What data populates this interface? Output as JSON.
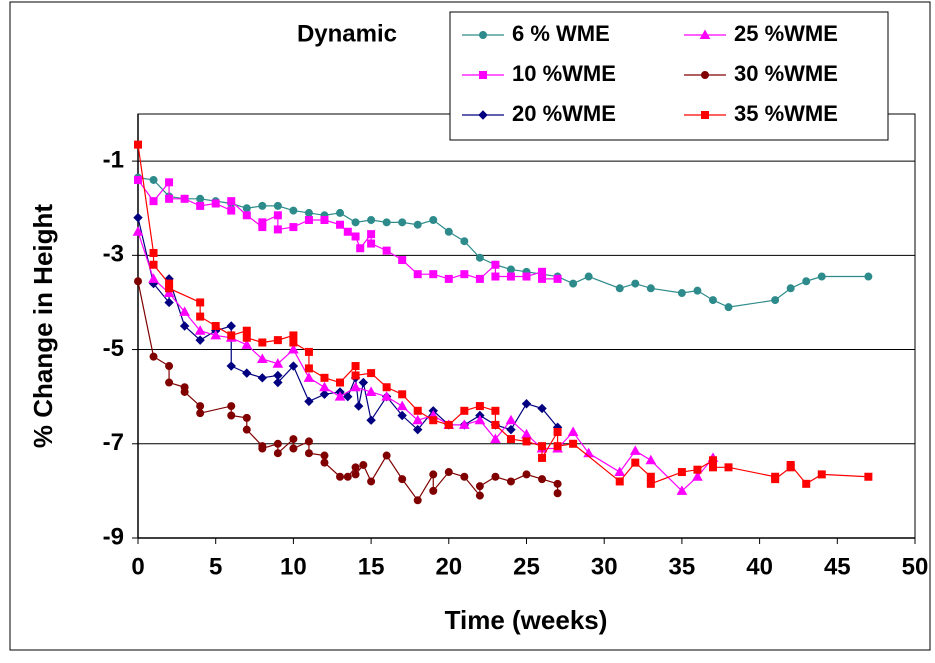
{
  "chart_data": {
    "type": "line",
    "title": "Dynamic",
    "xlabel": "Time (weeks)",
    "ylabel": "% Change in Height",
    "xlim": [
      0,
      50
    ],
    "xticks": [
      0,
      5,
      10,
      15,
      20,
      25,
      30,
      35,
      40,
      45,
      50
    ],
    "ylim": [
      -9,
      0
    ],
    "yticks": [
      -9,
      -7,
      -5,
      -3,
      -1
    ],
    "grid": true,
    "legend": "top-right",
    "series": [
      {
        "name": "6 % WME",
        "color": "#2e8b8b",
        "marker": "circle",
        "x": [
          0,
          1,
          2,
          3,
          4,
          5,
          6,
          7,
          8,
          9,
          10,
          11,
          12,
          13,
          14,
          15,
          16,
          17,
          18,
          19,
          20,
          21,
          22,
          23,
          24,
          25,
          26,
          27,
          28,
          29,
          31,
          32,
          33,
          35,
          36,
          37,
          38,
          41,
          42,
          43,
          44,
          47
        ],
        "values": [
          -1.35,
          -1.4,
          -1.75,
          -1.8,
          -1.8,
          -1.85,
          -1.9,
          -2.0,
          -1.95,
          -1.95,
          -2.05,
          -2.1,
          -2.15,
          -2.1,
          -2.3,
          -2.25,
          -2.3,
          -2.3,
          -2.35,
          -2.25,
          -2.5,
          -2.7,
          -3.05,
          -3.2,
          -3.3,
          -3.35,
          -3.4,
          -3.45,
          -3.6,
          -3.45,
          -3.7,
          -3.6,
          -3.7,
          -3.8,
          -3.75,
          -3.95,
          -4.1,
          -3.95,
          -3.7,
          -3.55,
          -3.45,
          -3.45
        ]
      },
      {
        "name": "10 %WME",
        "color": "#ff00ff",
        "marker": "square",
        "x": [
          0,
          1,
          2,
          2,
          3,
          4,
          5,
          6,
          6,
          7,
          8,
          8,
          9,
          9,
          10,
          11,
          12,
          13,
          13.5,
          14,
          14.3,
          15,
          15,
          16,
          17,
          18,
          19,
          20,
          21,
          22,
          23,
          23,
          24,
          25,
          26,
          26,
          27
        ],
        "values": [
          -1.4,
          -1.85,
          -1.45,
          -1.8,
          -1.8,
          -1.95,
          -1.9,
          -2.05,
          -1.85,
          -2.15,
          -2.4,
          -2.3,
          -2.15,
          -2.45,
          -2.4,
          -2.25,
          -2.25,
          -2.35,
          -2.5,
          -2.6,
          -2.85,
          -2.55,
          -2.75,
          -2.9,
          -3.1,
          -3.4,
          -3.4,
          -3.5,
          -3.4,
          -3.5,
          -3.2,
          -3.45,
          -3.45,
          -3.45,
          -3.35,
          -3.5,
          -3.5
        ]
      },
      {
        "name": "20 %WME",
        "color": "#000080",
        "marker": "diamond",
        "x": [
          0,
          1,
          2,
          2,
          3,
          4,
          5,
          6,
          6,
          7,
          8,
          9,
          9,
          10,
          11,
          12,
          13,
          13.5,
          14,
          14.2,
          14.5,
          15,
          16,
          17,
          18,
          19,
          20,
          21,
          22,
          23,
          24,
          25,
          26,
          27
        ],
        "values": [
          -2.2,
          -3.6,
          -4.0,
          -3.5,
          -4.5,
          -4.8,
          -4.6,
          -4.5,
          -5.35,
          -5.5,
          -5.6,
          -5.55,
          -5.7,
          -5.35,
          -6.1,
          -5.95,
          -5.9,
          -6.0,
          -5.6,
          -6.2,
          -5.7,
          -6.5,
          -6.0,
          -6.4,
          -6.7,
          -6.3,
          -6.6,
          -6.6,
          -6.4,
          -6.6,
          -6.7,
          -6.15,
          -6.25,
          -6.65
        ]
      },
      {
        "name": "25 %WME",
        "color": "#ff00ff",
        "marker": "triangle",
        "x": [
          0,
          1,
          2,
          3,
          4,
          5,
          6,
          7,
          8,
          9,
          10,
          11,
          12,
          13,
          14,
          15,
          16,
          17,
          18,
          19,
          20,
          21,
          22,
          23,
          24,
          25,
          26,
          27,
          28,
          29,
          31,
          32,
          33,
          35,
          36,
          37
        ],
        "values": [
          -2.5,
          -3.5,
          -3.8,
          -4.2,
          -4.6,
          -4.7,
          -4.75,
          -4.9,
          -5.2,
          -5.3,
          -5.0,
          -5.6,
          -5.8,
          -6.0,
          -5.8,
          -5.9,
          -6.0,
          -6.2,
          -6.5,
          -6.4,
          -6.6,
          -6.6,
          -6.5,
          -6.9,
          -6.5,
          -6.8,
          -7.1,
          -7.1,
          -6.75,
          -7.2,
          -7.6,
          -7.15,
          -7.35,
          -8.0,
          -7.7,
          -7.3
        ]
      },
      {
        "name": "30 %WME",
        "color": "#800000",
        "marker": "circle",
        "x": [
          0,
          1,
          2,
          2,
          3,
          3,
          4,
          4,
          6,
          6,
          7,
          7,
          8,
          8,
          9,
          9,
          10,
          10,
          11,
          11,
          12,
          12,
          13,
          13.5,
          14,
          14,
          14.5,
          15,
          16,
          17,
          18,
          19,
          19,
          20,
          21,
          22,
          22,
          23,
          24,
          25,
          26,
          27,
          27
        ],
        "values": [
          -3.55,
          -5.15,
          -5.35,
          -5.7,
          -5.8,
          -5.9,
          -6.2,
          -6.35,
          -6.2,
          -6.4,
          -6.45,
          -6.7,
          -7.05,
          -7.1,
          -7.0,
          -7.2,
          -6.9,
          -7.1,
          -6.95,
          -7.2,
          -7.25,
          -7.4,
          -7.7,
          -7.7,
          -7.5,
          -7.65,
          -7.45,
          -7.8,
          -7.25,
          -7.75,
          -8.2,
          -7.65,
          -8.0,
          -7.6,
          -7.7,
          -8.1,
          -7.9,
          -7.7,
          -7.8,
          -7.65,
          -7.75,
          -7.85,
          -8.05
        ]
      },
      {
        "name": "35 %WME",
        "color": "#ff0000",
        "marker": "square",
        "x": [
          0,
          1,
          1,
          2,
          2,
          4,
          4,
          5,
          6,
          7,
          7,
          8,
          9,
          10,
          10,
          11,
          11,
          12,
          13,
          14,
          14,
          15,
          16,
          17,
          18,
          19,
          20,
          21,
          22,
          23,
          23,
          24,
          25,
          26,
          26,
          27,
          27,
          28,
          31,
          32,
          33,
          33,
          35,
          36,
          37,
          37,
          38,
          41,
          41,
          42,
          42,
          43,
          44,
          47
        ],
        "values": [
          -0.65,
          -2.95,
          -3.2,
          -3.6,
          -3.7,
          -4.0,
          -4.3,
          -4.5,
          -4.7,
          -4.6,
          -4.75,
          -4.85,
          -4.8,
          -4.7,
          -4.85,
          -5.05,
          -5.4,
          -5.6,
          -5.7,
          -5.35,
          -5.55,
          -5.5,
          -5.8,
          -5.95,
          -6.3,
          -6.5,
          -6.6,
          -6.3,
          -6.2,
          -6.3,
          -6.6,
          -6.9,
          -6.95,
          -7.05,
          -7.3,
          -6.75,
          -7.05,
          -7.0,
          -7.8,
          -7.4,
          -7.7,
          -7.85,
          -7.6,
          -7.55,
          -7.35,
          -7.5,
          -7.5,
          -7.7,
          -7.75,
          -7.5,
          -7.45,
          -7.85,
          -7.65,
          -7.7
        ]
      }
    ]
  }
}
